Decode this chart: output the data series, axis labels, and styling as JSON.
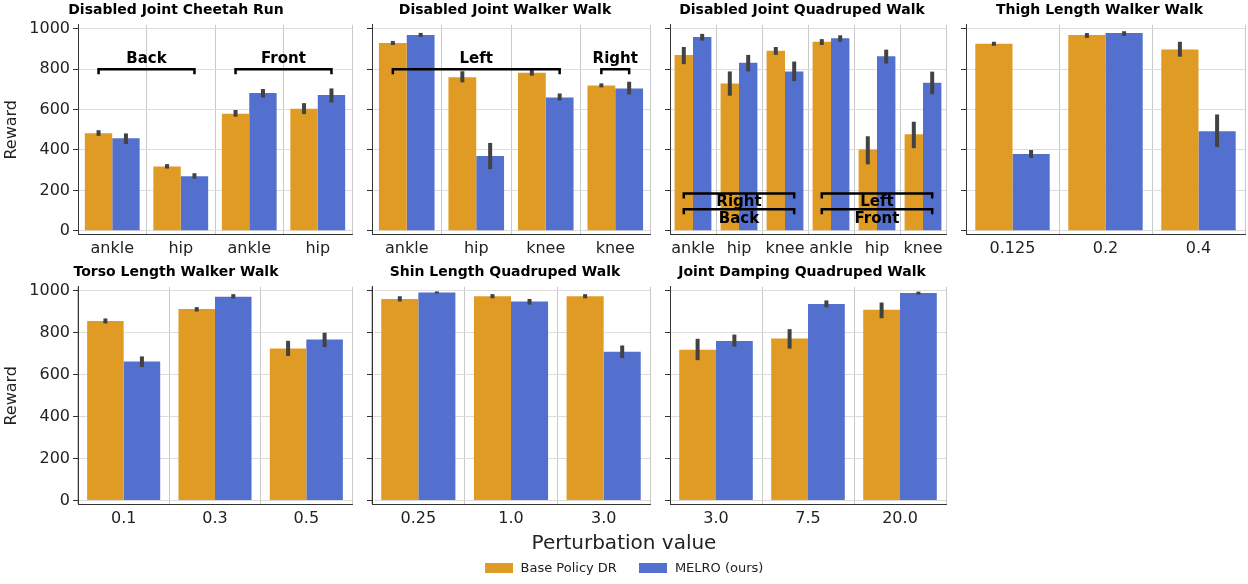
{
  "chart_data": [
    {
      "type": "bar",
      "title": "Disabled Joint Cheetah Run",
      "ylabel": "Reward",
      "legend": "bottom",
      "categories": [
        "ankle",
        "hip",
        "ankle",
        "hip"
      ],
      "ylim": [
        -20,
        1020
      ],
      "yticks": [
        0,
        200,
        400,
        600,
        800,
        1000
      ],
      "grid": true,
      "annotations": [
        "Back",
        "Front"
      ],
      "series": [
        {
          "name": "Base Policy DR",
          "color": "#e09b24",
          "values": [
            483,
            318,
            580,
            604
          ],
          "errors": [
            [
              470,
              498
            ],
            [
              308,
              330
            ],
            [
              565,
              598
            ],
            [
              578,
              632
            ]
          ]
        },
        {
          "name": "MELRO (ours)",
          "color": "#5470cf",
          "values": [
            458,
            270,
            682,
            672
          ],
          "errors": [
            [
              430,
              482
            ],
            [
              258,
              285
            ],
            [
              660,
              702
            ],
            [
              635,
              705
            ]
          ]
        }
      ]
    },
    {
      "type": "bar",
      "title": "Disabled Joint Walker Walk",
      "categories": [
        "ankle",
        "hip",
        "knee",
        "knee"
      ],
      "ylim": [
        -20,
        1020
      ],
      "yticks": [
        0,
        200,
        400,
        600,
        800,
        1000
      ],
      "tick_labels": "x",
      "grid": true,
      "annotations": [
        "Left",
        "Right"
      ],
      "series": [
        {
          "color": "#e09b24",
          "values": [
            930,
            760,
            783,
            720
          ],
          "errors": [
            [
              920,
              940
            ],
            [
              735,
              790
            ],
            [
              768,
              798
            ],
            [
              710,
              730
            ]
          ]
        },
        {
          "color": "#5470cf",
          "values": [
            970,
            370,
            660,
            705
          ],
          "errors": [
            [
              960,
              980
            ],
            [
              305,
              435
            ],
            [
              645,
              680
            ],
            [
              675,
              738
            ]
          ]
        }
      ]
    },
    {
      "type": "bar",
      "title": "Disabled Joint Quadruped Walk",
      "categories": [
        "ankle",
        "hip",
        "knee",
        "ankle",
        "hip",
        "knee"
      ],
      "ylim": [
        -20,
        1020
      ],
      "yticks": [
        0,
        200,
        400,
        600,
        800,
        1000
      ],
      "tick_labels": "x",
      "grid": true,
      "annotations": [
        "Right",
        "Back",
        "Left",
        "Front"
      ],
      "series": [
        {
          "color": "#e09b24",
          "values": [
            871,
            729,
            891,
            936,
            402,
            478
          ],
          "errors": [
            [
              825,
              910
            ],
            [
              669,
              789
            ],
            [
              871,
              910
            ],
            [
              920,
              949
            ],
            [
              329,
              468
            ],
            [
              409,
              540
            ]
          ]
        },
        {
          "color": "#5470cf",
          "values": [
            959,
            832,
            789,
            953,
            864,
            733
          ],
          "errors": [
            [
              942,
              975
            ],
            [
              789,
              871
            ],
            [
              741,
              838
            ],
            [
              936,
              968
            ],
            [
              828,
              897
            ],
            [
              676,
              788
            ]
          ]
        }
      ]
    },
    {
      "type": "bar",
      "title": "Thigh Length Walker Walk",
      "categories": [
        "0.125",
        "0.2",
        "0.4"
      ],
      "ylim": [
        -20,
        1020
      ],
      "yticks": [
        0,
        200,
        400,
        600,
        800,
        1000
      ],
      "tick_labels": "x",
      "grid": true,
      "series": [
        {
          "color": "#e09b24",
          "values": [
            926,
            969,
            898
          ],
          "errors": [
            [
              916,
              936
            ],
            [
              955,
              979
            ],
            [
              862,
              936
            ]
          ]
        },
        {
          "color": "#5470cf",
          "values": [
            380,
            979,
            493
          ],
          "errors": [
            [
              361,
              400
            ],
            [
              965,
              988
            ],
            [
              415,
              576
            ]
          ]
        }
      ]
    },
    {
      "type": "bar",
      "title": "Torso Length Walker Walk",
      "ylabel": "Reward",
      "categories": [
        "0.1",
        "0.3",
        "0.5"
      ],
      "ylim": [
        -20,
        1020
      ],
      "yticks": [
        0,
        200,
        400,
        600,
        800,
        1000
      ],
      "grid": true,
      "series": [
        {
          "color": "#e09b24",
          "values": [
            857,
            914,
            726
          ],
          "errors": [
            [
              845,
              869
            ],
            [
              902,
              923
            ],
            [
              690,
              762
            ]
          ]
        },
        {
          "color": "#5470cf",
          "values": [
            664,
            973,
            768
          ],
          "errors": [
            [
              637,
              688
            ],
            [
              964,
              985
            ],
            [
              732,
              801
            ]
          ]
        }
      ]
    },
    {
      "type": "bar",
      "title": "Shin Length Quadruped Walk",
      "xlabel": "Perturbation value",
      "categories": [
        "0.25",
        "1.0",
        "3.0"
      ],
      "ylim": [
        -20,
        1020
      ],
      "yticks": [
        0,
        200,
        400,
        600,
        800,
        1000
      ],
      "tick_labels": "x",
      "grid": true,
      "series": [
        {
          "color": "#e09b24",
          "values": [
            962,
            975,
            975
          ],
          "errors": [
            [
              950,
              975
            ],
            [
              965,
              985
            ],
            [
              965,
              985
            ]
          ]
        },
        {
          "color": "#5470cf",
          "values": [
            993,
            950,
            710
          ],
          "errors": [
            [
              988,
              998
            ],
            [
              935,
              962
            ],
            [
              680,
              740
            ]
          ]
        }
      ]
    },
    {
      "type": "bar",
      "title": "Joint Damping Quadruped Walk",
      "categories": [
        "3.0",
        "7.5",
        "20.0"
      ],
      "ylim": [
        -20,
        1020
      ],
      "yticks": [
        0,
        200,
        400,
        600,
        800,
        1000
      ],
      "tick_labels": "x",
      "grid": true,
      "series": [
        {
          "color": "#e09b24",
          "values": [
            720,
            773,
            910
          ],
          "errors": [
            [
              670,
              772
            ],
            [
              725,
              818
            ],
            [
              870,
              945
            ]
          ]
        },
        {
          "color": "#5470cf",
          "values": [
            762,
            938,
            990
          ],
          "errors": [
            [
              735,
              792
            ],
            [
              922,
              955
            ],
            [
              983,
              997
            ]
          ]
        }
      ]
    }
  ]
}
